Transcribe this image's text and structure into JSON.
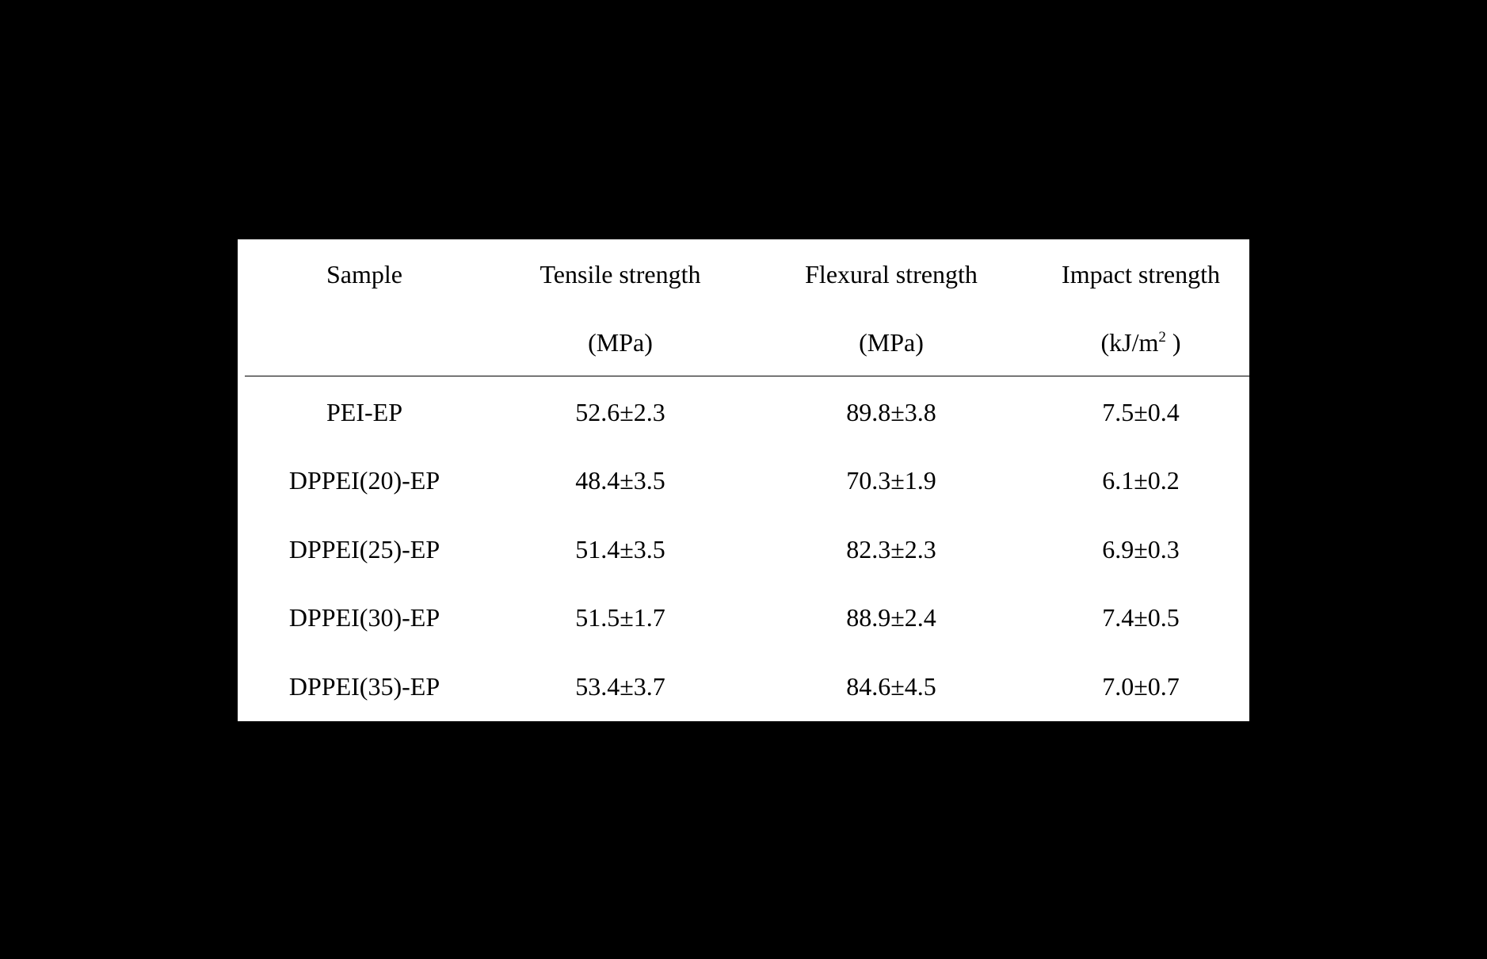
{
  "table": {
    "headers": [
      {
        "line1": "Sample",
        "line2": ""
      },
      {
        "line1": "Tensile strength",
        "line2": "(MPa)"
      },
      {
        "line1": "Flexural strength",
        "line2": "(MPa)"
      },
      {
        "line1": "Impact strength",
        "line2_prefix": "(kJ/m",
        "line2_sup": "2",
        "line2_suffix": " )"
      }
    ],
    "rows": [
      [
        "PEI-EP",
        "52.6±2.3",
        "89.8±3.8",
        "7.5±0.4"
      ],
      [
        "DPPEI(20)-EP",
        "48.4±3.5",
        "70.3±1.9",
        "6.1±0.2"
      ],
      [
        "DPPEI(25)-EP",
        "51.4±3.5",
        "82.3±2.3",
        "6.9±0.3"
      ],
      [
        "DPPEI(30)-EP",
        "51.5±1.7",
        "88.9±2.4",
        "7.4±0.5"
      ],
      [
        "DPPEI(35)-EP",
        "53.4±3.7",
        "84.6±4.5",
        "7.0±0.7"
      ]
    ]
  }
}
